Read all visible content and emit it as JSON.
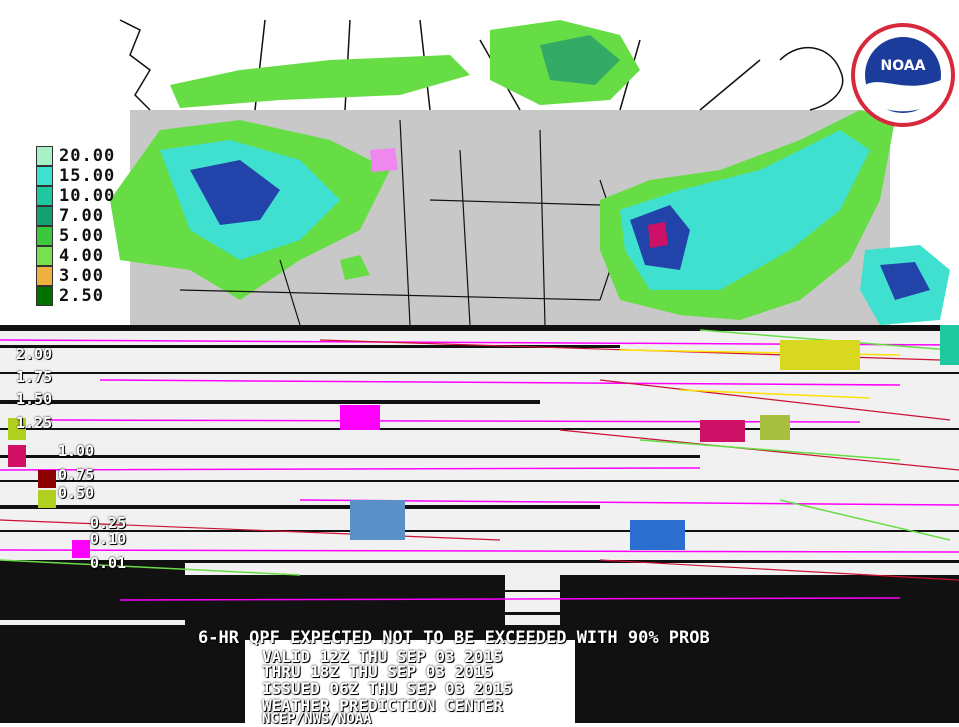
{
  "legend": {
    "entries": [
      {
        "label": "20.00",
        "color": "#a8f0c8"
      },
      {
        "label": "15.00",
        "color": "#40e0d0"
      },
      {
        "label": "10.00",
        "color": "#20c8a0"
      },
      {
        "label": "7.00",
        "color": "#14a070"
      },
      {
        "label": "5.00",
        "color": "#3cc83c"
      },
      {
        "label": "4.00",
        "color": "#78e050"
      },
      {
        "label": "3.00",
        "color": "#f0b040"
      },
      {
        "label": "2.50",
        "color": "#007000"
      }
    ],
    "secondary_labels": [
      "2.00",
      "1.75",
      "1.50",
      "1.25",
      "1.00",
      "0.75",
      "0.50",
      "0.25",
      "0.10",
      "0.01"
    ]
  },
  "logo": {
    "text": "NOAA",
    "ring_color": "#d8283c",
    "inner_color": "#1b3c9a"
  },
  "caption": {
    "title": "6-HR QPF EXPECTED NOT TO BE EXCEEDED WITH 90% PROB",
    "line2": "VALID 12Z THU SEP 03 2015",
    "line3": "THRU 18Z THU SEP 03 2015",
    "line4": "ISSUED 06Z THU SEP 03 2015",
    "line5": "WEATHER PREDICTION CENTER",
    "line6": "NCEP/NWS/NOAA"
  },
  "colors": {
    "land": "#c8c8c8",
    "background": "#ffffff",
    "border_line": "#111111",
    "precip_light": "#66dd44",
    "precip_med": "#33aa66",
    "precip_heavy": "#2244aa",
    "precip_extreme": "#cc1166",
    "artifact_dark": "#111111",
    "artifact_magenta": "#ff00ff",
    "artifact_yellow": "#ffe000"
  }
}
